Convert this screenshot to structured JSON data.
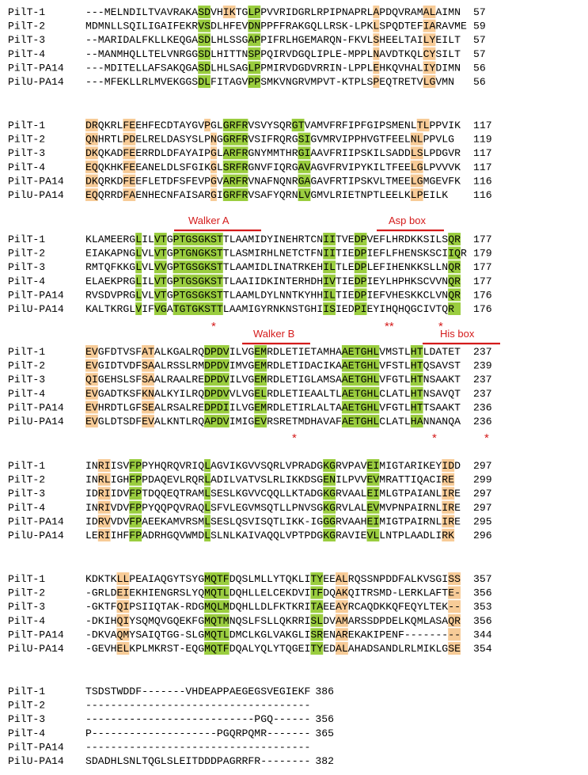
{
  "colors": {
    "identical": "#9acd3f",
    "similar": "#f7cb97",
    "weak": "#d5f2f6",
    "annotation": "#d41b1b"
  },
  "names": [
    "PilT-1",
    "PilT-2",
    "PilT-3",
    "PilT-4",
    "PilT-PA14",
    "PilU-PA14"
  ],
  "blocks": [
    {
      "rows": [
        {
          "seq": "---MELNDILTVAVRAKASDVHIKTGLPPVVRIDGRLRPIPNAPRLAPDQVRAMALAIMN",
          "end": "57"
        },
        {
          "seq": "MDMNLLSQILIGAIFEKRVSDLHFEVDNPPFFRAKGQLLRSK-LPKLSPQDTEFIARAVME",
          "end": "59"
        },
        {
          "seq": "--MARIDALFKLLKEQGASDLHLSSGAPPIFRLHGEMARQN-FKVLSHEELTAILYEILT",
          "end": "57"
        },
        {
          "seq": "--MANMHQLLTELVNRGGSDLHITTNSPPQIRVDGQLIPLE-MPPLNAVDTKQLCYSILT",
          "end": "57"
        },
        {
          "seq": "---MDITELLAFSAKQGASDLHLSAGLPPMIRVDGDVRRIN-LPPLEHKQVHALIYDIMN",
          "end": "56"
        },
        {
          "seq": "---MFEKLLRLMVEKGGSDLFITAGVPPSMKVNGRVMPVT-KTPLSPEQTRETVLGVMN",
          "end": "56"
        }
      ]
    },
    {
      "rows": [
        {
          "seq": "DRQKRLFEEHFECDTAYGVPGLGRFRVSVYSQRGTVAMVFRFIPFGIPSMENLTLPPVIK",
          "end": "117"
        },
        {
          "seq": "QNHRTLPDELRELDASYSLPNGGRFRVSIFRQRGSIGVMRVIPPHVGTFEELNLPPVLG",
          "end": "119"
        },
        {
          "seq": "DKQKADFEERRDLDFAYAIPGLARFRGNYMMTHRGIAAVFRIIPSKILSADDLSLPDGVR",
          "end": "117"
        },
        {
          "seq": "EQQKHKFEEANELDLSFGIKGLSRFRGNVFIQRGAVAGVFRVIPYKILTFEELGLPVVVK",
          "end": "117"
        },
        {
          "seq": "DKQRKDFEEFLETDFSFEVPGVARFRVNAFNQNRGAGAVFRTIPSKVLTMEELGMGEVFK",
          "end": "116"
        },
        {
          "seq": "EQQRRDFAENHECNFAISARGIGRFRVSAFYQRNLVGMVLRIETNPTLEELKLPEILK",
          "end": "116"
        }
      ]
    },
    {
      "rows": [
        {
          "seq": "KLAMEERGLILVTGPTGSGKSTTLAAMIDYINEHRTCNIITVEDPVEFLHRDKKSILSQR",
          "end": "177"
        },
        {
          "seq": "EIAKAPNGLVLVTGPTGNGKSTTLASMIRHLNETCTFNIITIEDPIEFLFHENSKSCIIQR",
          "end": "179"
        },
        {
          "seq": "RMTQFKKGLVLVVGPTGSGKSTTLAAMIDLINATRKEHILTLEDPLEFIHENKKSLLNQR",
          "end": "177"
        },
        {
          "seq": "ELAEKPRGLILVTGPTGSGKSTTLAAIIDKINTERHDHIVTIEDPIEYLHPHKSCVVNQR",
          "end": "177"
        },
        {
          "seq": "RVSDVPRGLVLVTGPTGSGKSTTLAAMLDYLNNTKYHHILTIEDPIEFVHESKKCLVNQR",
          "end": "176"
        },
        {
          "seq": "KALTKRGLVIFVGATGTGKSTTLAAMIGYRNKNSTGHIISIEDPIEYIHQHQGCIVTQR",
          "end": "176"
        }
      ]
    },
    {
      "rows": [
        {
          "seq": "EVGFDTVSFATALKGALRQDPDVILVGEMRDLETIETAMHAAETGHLVMSTLHTLDATET",
          "end": "237"
        },
        {
          "seq": "EVGIDTVDFSAALRSSLRMDPDVIMVGEMRDLETIDACIKAAETGHLVFSTLHTQSAVST",
          "end": "239"
        },
        {
          "seq": "QIGEHSLSFSAALRAALREDPDVILVGEMRDLETIGLAMSAAETGHLVFGTLHTNSAAKT",
          "end": "237"
        },
        {
          "seq": "EVGADTKSFKNALKYILRQDPDVVLVGELRDLETIEAALTLAETGHLCLATLHTNSAVQT",
          "end": "237"
        },
        {
          "seq": "EVHRDTLGFSEALRSALREDPDIILVGEMRDLETIRLALTAAETGHLVFGTLHTTSAAKT",
          "end": "236"
        },
        {
          "seq": "EVGLDTSDFEVALKNTLRQAPDVIMIGEVRSRETMDHAVAFAETGHLCLATLHANNANQA",
          "end": "236"
        }
      ]
    },
    {
      "rows": [
        {
          "seq": "INRIISVFPPYHQRQVRIQLAGVIKGVVSQRLVPRADGKGRVPAVEIMIGTARIKEYIDD",
          "end": "297"
        },
        {
          "seq": "INRLIGHFPPDAQEVLRQRLADILVATVSLRLIKKDSGENILPVVEVMRATTIQACIRE",
          "end": "299"
        },
        {
          "seq": "IDRIIDVFPTDQQEQTRAMLSESLKGVVCQQLLKTADGKGRVAALEIMLGTPAIANLIRE",
          "end": "297"
        },
        {
          "seq": "INRIVDVFPPYQQPQVRAQLSFVLEGVMSQTLLPNVSGKGRVLALEVMVPNPAIRNLIRE",
          "end": "297"
        },
        {
          "seq": "IDRVVDVFPAEEKAMVRSMLSESLQSVISQTLIKK-IGGGRVAAHEIMIGTPAIRNLIRE",
          "end": "295"
        },
        {
          "seq": "LERIIHFFPADRHGQVWMDLSLNLKAIVAQQLVPTPDGKGRAVIEVLLNTPLAADLIRK",
          "end": "296"
        }
      ]
    },
    {
      "rows": [
        {
          "seq": "KDKTKLLPEAIAQGYTSYGMQTFDQSLMLLYTQKLITYEEALRQSSNPDDFALKVSGISS",
          "end": "357"
        },
        {
          "seq": "-GRLDEIEKHIENGRSLYQMQTLDQHLLELCEKDVITFDQAKQITRSMD-LERKLAFTE-",
          "end": "356"
        },
        {
          "seq": "-GKTFQIPSIIQTAK-RDGMQLMDQHLLDLFKTKRITAEEAYRCAQDKKQFEQYLTEK--",
          "end": "353"
        },
        {
          "seq": "-DKIHQIYSQMQVGQEKFGMQTMNQSLFSLLQKRRISLDVAMARSSDPDELKQMLASAQR",
          "end": "356"
        },
        {
          "seq": "-DKVAQMYSAIQTGG-SLGMQTLDMCLKGLVAKGLISRENAREKAKIPENF---------",
          "end": "344"
        },
        {
          "seq": "-GEVHELKPLMKRST-EQGMQTFDQALYQLYTQGEITYEDALAHADSANDLRLMIKLGSE",
          "end": "354"
        }
      ]
    },
    {
      "rows": [
        {
          "seq": "TSDSTWDDF-------VHDEAPPAEGEGSVEGIEKF",
          "end": "386"
        },
        {
          "seq": "------------------------------------",
          "end": ""
        },
        {
          "seq": "---------------------------PGQ------",
          "end": "356"
        },
        {
          "seq": "P--------------------PGQRPQMR-------",
          "end": "365"
        },
        {
          "seq": "------------------------------------",
          "end": ""
        },
        {
          "seq": "SDADHLSNLTQGLSLEITDDDPAGRRFR--------",
          "end": "382"
        }
      ]
    }
  ],
  "annotations": {
    "walker_a": "Walker A",
    "asp_box": "Asp box",
    "walker_b": "Walker B",
    "his_box": "His box",
    "star": "*",
    "double_star": "**"
  },
  "highlights": [
    [
      [
        [
          18,
          20,
          "g"
        ],
        [
          22,
          24,
          "o"
        ],
        [
          26,
          28,
          "g"
        ],
        [
          46,
          47,
          "o"
        ],
        [
          54,
          56,
          "o"
        ]
      ],
      [
        [
          18,
          20,
          "g"
        ],
        [
          26,
          28,
          "g"
        ],
        [
          46,
          47,
          "o"
        ],
        [
          54,
          56,
          "o"
        ]
      ],
      [
        [
          18,
          20,
          "g"
        ],
        [
          26,
          28,
          "g"
        ],
        [
          46,
          47,
          "o"
        ],
        [
          54,
          56,
          "o"
        ]
      ],
      [
        [
          18,
          20,
          "g"
        ],
        [
          26,
          28,
          "g"
        ],
        [
          46,
          47,
          "o"
        ],
        [
          54,
          56,
          "o"
        ]
      ],
      [
        [
          18,
          20,
          "g"
        ],
        [
          26,
          28,
          "g"
        ],
        [
          46,
          47,
          "o"
        ],
        [
          54,
          56,
          "o"
        ]
      ],
      [
        [
          18,
          20,
          "g"
        ],
        [
          26,
          28,
          "g"
        ],
        [
          46,
          47,
          "o"
        ],
        [
          54,
          56,
          "o"
        ]
      ]
    ],
    [
      [
        [
          0,
          2,
          "o"
        ],
        [
          6,
          8,
          "o"
        ],
        [
          19,
          20,
          "o"
        ],
        [
          22,
          26,
          "g"
        ],
        [
          33,
          35,
          "g"
        ],
        [
          53,
          55,
          "o"
        ]
      ],
      [
        [
          0,
          2,
          "o"
        ],
        [
          6,
          8,
          "o"
        ],
        [
          20,
          21,
          "o"
        ],
        [
          22,
          26,
          "g"
        ],
        [
          34,
          36,
          "g"
        ],
        [
          52,
          54,
          "o"
        ]
      ],
      [
        [
          0,
          2,
          "o"
        ],
        [
          6,
          8,
          "o"
        ],
        [
          20,
          21,
          "o"
        ],
        [
          22,
          26,
          "g"
        ],
        [
          34,
          36,
          "g"
        ],
        [
          52,
          54,
          "o"
        ]
      ],
      [
        [
          0,
          2,
          "o"
        ],
        [
          6,
          8,
          "o"
        ],
        [
          20,
          21,
          "o"
        ],
        [
          22,
          26,
          "g"
        ],
        [
          34,
          36,
          "g"
        ],
        [
          52,
          54,
          "o"
        ]
      ],
      [
        [
          0,
          2,
          "o"
        ],
        [
          6,
          8,
          "o"
        ],
        [
          20,
          21,
          "o"
        ],
        [
          22,
          26,
          "g"
        ],
        [
          34,
          36,
          "g"
        ],
        [
          52,
          54,
          "o"
        ]
      ],
      [
        [
          0,
          2,
          "o"
        ],
        [
          6,
          8,
          "o"
        ],
        [
          20,
          21,
          "o"
        ],
        [
          22,
          26,
          "g"
        ],
        [
          34,
          36,
          "g"
        ],
        [
          52,
          54,
          "o"
        ]
      ]
    ],
    [
      [
        [
          8,
          9,
          "g"
        ],
        [
          11,
          13,
          "g"
        ],
        [
          14,
          22,
          "g"
        ],
        [
          38,
          40,
          "g"
        ],
        [
          43,
          45,
          "g"
        ],
        [
          58,
          60,
          "g"
        ]
      ],
      [
        [
          8,
          9,
          "g"
        ],
        [
          11,
          13,
          "g"
        ],
        [
          14,
          22,
          "g"
        ],
        [
          38,
          40,
          "g"
        ],
        [
          43,
          45,
          "g"
        ],
        [
          58,
          60,
          "g"
        ]
      ],
      [
        [
          8,
          9,
          "g"
        ],
        [
          11,
          13,
          "g"
        ],
        [
          14,
          22,
          "g"
        ],
        [
          38,
          40,
          "g"
        ],
        [
          43,
          45,
          "g"
        ],
        [
          58,
          60,
          "g"
        ]
      ],
      [
        [
          8,
          9,
          "g"
        ],
        [
          11,
          13,
          "g"
        ],
        [
          14,
          22,
          "g"
        ],
        [
          38,
          40,
          "g"
        ],
        [
          43,
          45,
          "g"
        ],
        [
          58,
          60,
          "g"
        ]
      ],
      [
        [
          8,
          9,
          "g"
        ],
        [
          11,
          13,
          "g"
        ],
        [
          14,
          22,
          "g"
        ],
        [
          38,
          40,
          "g"
        ],
        [
          43,
          45,
          "g"
        ],
        [
          58,
          60,
          "g"
        ]
      ],
      [
        [
          8,
          9,
          "g"
        ],
        [
          11,
          13,
          "g"
        ],
        [
          14,
          22,
          "g"
        ],
        [
          38,
          40,
          "g"
        ],
        [
          43,
          45,
          "g"
        ],
        [
          58,
          60,
          "g"
        ]
      ]
    ],
    [
      [
        [
          0,
          2,
          "o"
        ],
        [
          9,
          11,
          "o"
        ],
        [
          19,
          23,
          "g"
        ],
        [
          27,
          29,
          "g"
        ],
        [
          41,
          47,
          "g"
        ],
        [
          52,
          54,
          "g"
        ]
      ],
      [
        [
          0,
          2,
          "o"
        ],
        [
          9,
          11,
          "o"
        ],
        [
          19,
          23,
          "g"
        ],
        [
          27,
          29,
          "g"
        ],
        [
          41,
          47,
          "g"
        ],
        [
          52,
          54,
          "g"
        ]
      ],
      [
        [
          0,
          2,
          "o"
        ],
        [
          9,
          11,
          "o"
        ],
        [
          19,
          23,
          "g"
        ],
        [
          27,
          29,
          "g"
        ],
        [
          41,
          47,
          "g"
        ],
        [
          52,
          54,
          "g"
        ]
      ],
      [
        [
          0,
          2,
          "o"
        ],
        [
          9,
          11,
          "o"
        ],
        [
          19,
          23,
          "g"
        ],
        [
          27,
          29,
          "g"
        ],
        [
          41,
          47,
          "g"
        ],
        [
          52,
          54,
          "g"
        ]
      ],
      [
        [
          0,
          2,
          "o"
        ],
        [
          9,
          11,
          "o"
        ],
        [
          19,
          23,
          "g"
        ],
        [
          27,
          29,
          "g"
        ],
        [
          41,
          47,
          "g"
        ],
        [
          52,
          54,
          "g"
        ]
      ],
      [
        [
          0,
          2,
          "o"
        ],
        [
          9,
          11,
          "o"
        ],
        [
          19,
          23,
          "g"
        ],
        [
          27,
          29,
          "g"
        ],
        [
          41,
          47,
          "g"
        ],
        [
          52,
          54,
          "g"
        ]
      ]
    ],
    [
      [
        [
          2,
          4,
          "o"
        ],
        [
          7,
          9,
          "g"
        ],
        [
          19,
          20,
          "g"
        ],
        [
          38,
          40,
          "g"
        ],
        [
          45,
          47,
          "g"
        ],
        [
          57,
          59,
          "o"
        ]
      ],
      [
        [
          2,
          4,
          "o"
        ],
        [
          7,
          9,
          "g"
        ],
        [
          19,
          20,
          "g"
        ],
        [
          38,
          40,
          "g"
        ],
        [
          45,
          47,
          "g"
        ],
        [
          57,
          59,
          "o"
        ]
      ],
      [
        [
          2,
          4,
          "o"
        ],
        [
          7,
          9,
          "g"
        ],
        [
          19,
          20,
          "g"
        ],
        [
          38,
          40,
          "g"
        ],
        [
          45,
          47,
          "g"
        ],
        [
          57,
          59,
          "o"
        ]
      ],
      [
        [
          2,
          4,
          "o"
        ],
        [
          7,
          9,
          "g"
        ],
        [
          19,
          20,
          "g"
        ],
        [
          38,
          40,
          "g"
        ],
        [
          45,
          47,
          "g"
        ],
        [
          57,
          59,
          "o"
        ]
      ],
      [
        [
          2,
          4,
          "o"
        ],
        [
          7,
          9,
          "g"
        ],
        [
          19,
          20,
          "g"
        ],
        [
          38,
          40,
          "g"
        ],
        [
          45,
          47,
          "g"
        ],
        [
          57,
          59,
          "o"
        ]
      ],
      [
        [
          2,
          4,
          "o"
        ],
        [
          7,
          9,
          "g"
        ],
        [
          19,
          20,
          "g"
        ],
        [
          38,
          40,
          "g"
        ],
        [
          45,
          47,
          "g"
        ],
        [
          57,
          59,
          "o"
        ]
      ]
    ],
    [
      [
        [
          5,
          7,
          "o"
        ],
        [
          19,
          23,
          "g"
        ],
        [
          36,
          38,
          "g"
        ],
        [
          40,
          42,
          "o"
        ],
        [
          58,
          60,
          "o"
        ]
      ],
      [
        [
          5,
          7,
          "o"
        ],
        [
          19,
          23,
          "g"
        ],
        [
          36,
          38,
          "g"
        ],
        [
          40,
          42,
          "o"
        ],
        [
          58,
          60,
          "o"
        ]
      ],
      [
        [
          5,
          7,
          "o"
        ],
        [
          19,
          23,
          "g"
        ],
        [
          36,
          38,
          "g"
        ],
        [
          40,
          42,
          "o"
        ],
        [
          58,
          60,
          "o"
        ]
      ],
      [
        [
          5,
          7,
          "o"
        ],
        [
          19,
          23,
          "g"
        ],
        [
          36,
          38,
          "g"
        ],
        [
          40,
          42,
          "o"
        ],
        [
          58,
          60,
          "o"
        ]
      ],
      [
        [
          5,
          7,
          "o"
        ],
        [
          19,
          23,
          "g"
        ],
        [
          36,
          38,
          "g"
        ],
        [
          40,
          42,
          "o"
        ],
        [
          58,
          60,
          "o"
        ]
      ],
      [
        [
          5,
          7,
          "o"
        ],
        [
          19,
          23,
          "g"
        ],
        [
          36,
          38,
          "g"
        ],
        [
          40,
          42,
          "o"
        ],
        [
          58,
          60,
          "o"
        ]
      ]
    ],
    [
      [],
      [],
      [],
      [],
      [],
      []
    ]
  ]
}
